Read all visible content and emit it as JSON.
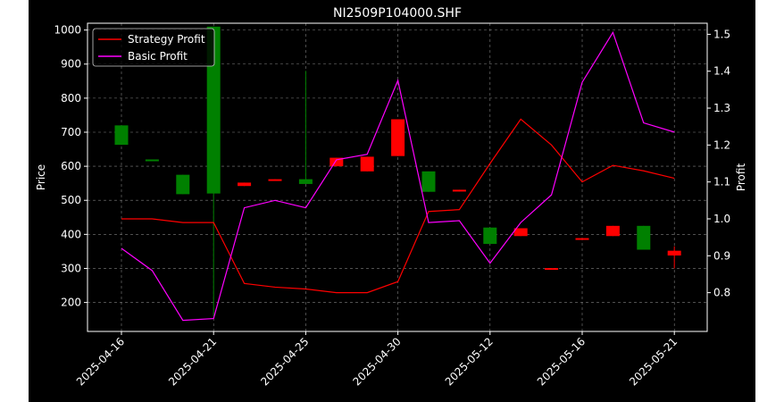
{
  "chart_data": {
    "type": "candlestick",
    "title": "NI2509P104000.SHF",
    "xlabel": "",
    "ylabel_left": "Price",
    "ylabel_right": "Profit",
    "ylim_left": [
      115,
      1020
    ],
    "ylim_right": [
      0.695,
      1.53
    ],
    "yticks_left": [
      200,
      300,
      400,
      500,
      600,
      700,
      800,
      900,
      1000
    ],
    "yticks_right": [
      "0.8",
      "0.9",
      "1.0",
      "1.1",
      "1.2",
      "1.3",
      "1.4",
      "1.5"
    ],
    "xtick_labels": [
      "2025-04-16",
      "2025-04-21",
      "2025-04-25",
      "2025-04-30",
      "2025-05-12",
      "2025-05-16",
      "2025-05-21"
    ],
    "xtick_index": [
      0,
      3,
      6,
      9,
      12,
      15,
      18
    ],
    "grid": true,
    "legend_position": "top-left",
    "colors": {
      "up": "#ff0000",
      "down": "#008000",
      "strategy": "#ff0000",
      "basic": "#ff00ff",
      "grid": "#808080"
    },
    "candles": [
      {
        "open": 720,
        "close": 663,
        "high": 720,
        "low": 663
      },
      {
        "open": 620,
        "close": 617,
        "high": 620,
        "low": 617
      },
      {
        "open": 575,
        "close": 518,
        "high": 575,
        "low": 518
      },
      {
        "open": 1010,
        "close": 520,
        "high": 1010,
        "low": 160
      },
      {
        "open": 542,
        "close": 552,
        "high": 552,
        "low": 542
      },
      {
        "open": 558,
        "close": 562,
        "high": 562,
        "low": 558
      },
      {
        "open": 562,
        "close": 548,
        "high": 880,
        "low": 548
      },
      {
        "open": 600,
        "close": 625,
        "high": 625,
        "low": 600
      },
      {
        "open": 585,
        "close": 628,
        "high": 628,
        "low": 585
      },
      {
        "open": 630,
        "close": 738,
        "high": 738,
        "low": 630
      },
      {
        "open": 585,
        "close": 525,
        "high": 585,
        "low": 525
      },
      {
        "open": 526,
        "close": 531,
        "high": 531,
        "low": 526
      },
      {
        "open": 420,
        "close": 372,
        "high": 420,
        "low": 372
      },
      {
        "open": 395,
        "close": 418,
        "high": 418,
        "low": 395
      },
      {
        "open": 300,
        "close": 301,
        "high": 301,
        "low": 300
      },
      {
        "open": 386,
        "close": 389,
        "high": 389,
        "low": 386
      },
      {
        "open": 395,
        "close": 425,
        "high": 425,
        "low": 395
      },
      {
        "open": 425,
        "close": 355,
        "high": 425,
        "low": 355
      },
      {
        "open": 338,
        "close": 352,
        "high": 365,
        "low": 300
      }
    ],
    "series": [
      {
        "name": "Strategy Profit",
        "values": [
          1.0,
          1.0,
          0.99,
          0.99,
          0.825,
          0.815,
          0.81,
          0.8,
          0.8,
          0.83,
          1.02,
          1.025,
          1.15,
          1.27,
          1.2,
          1.1,
          1.145,
          1.13,
          1.11
        ]
      },
      {
        "name": "Basic Profit",
        "values": [
          0.92,
          0.86,
          0.725,
          0.73,
          1.03,
          1.05,
          1.03,
          1.16,
          1.175,
          1.375,
          0.99,
          0.995,
          0.88,
          0.99,
          1.065,
          1.37,
          1.505,
          1.26,
          1.235
        ]
      }
    ]
  }
}
